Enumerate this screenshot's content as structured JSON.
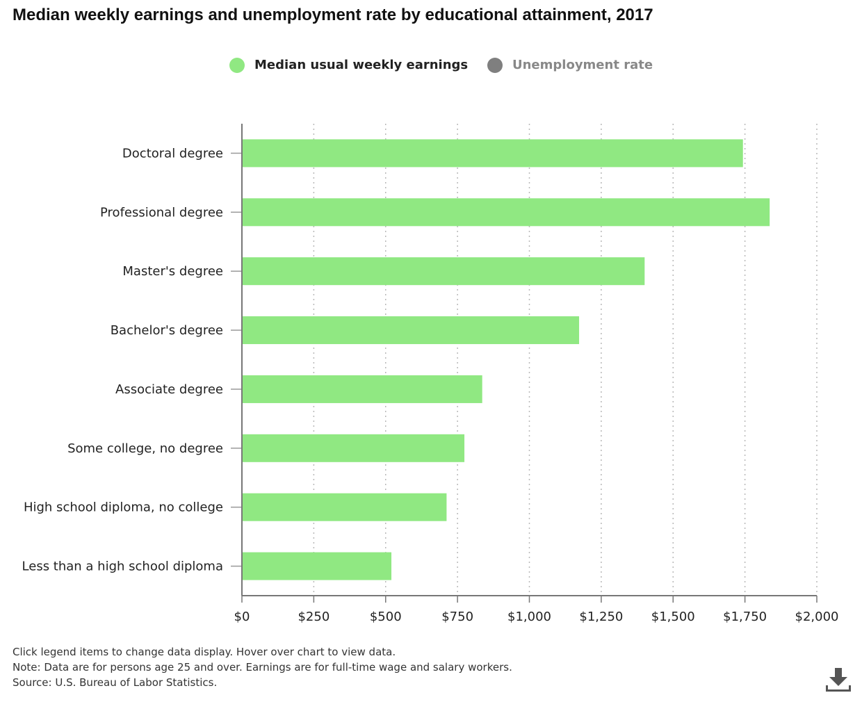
{
  "title": "Median weekly earnings and unemployment rate by educational attainment, 2017",
  "legend": [
    {
      "label": "Median usual weekly earnings",
      "color": "#90e882",
      "active": true
    },
    {
      "label": "Unemployment rate",
      "color": "#7f7f7f",
      "active": false
    }
  ],
  "notes": {
    "interaction": "Click legend items to change data display. Hover over chart to view data.",
    "note": "Note: Data are for persons age 25 and over. Earnings are for full-time wage and salary workers.",
    "source": "Source: U.S. Bureau of Labor Statistics."
  },
  "download_icon": "download-icon",
  "chart_data": {
    "type": "bar",
    "orientation": "horizontal",
    "categories": [
      "Doctoral degree",
      "Professional degree",
      "Master's degree",
      "Bachelor's degree",
      "Associate degree",
      "Some college, no degree",
      "High school diploma, no college",
      "Less than a high school diploma"
    ],
    "series": [
      {
        "name": "Median usual weekly earnings",
        "values": [
          1743,
          1836,
          1401,
          1173,
          836,
          774,
          712,
          520
        ],
        "color": "#90e882"
      }
    ],
    "xlim": [
      0,
      2000
    ],
    "x_ticks": [
      0,
      250,
      500,
      750,
      1000,
      1250,
      1500,
      1750,
      2000
    ],
    "x_tick_labels": [
      "$0",
      "$250",
      "$500",
      "$750",
      "$1,000",
      "$1,250",
      "$1,500",
      "$1,750",
      "$2,000"
    ],
    "grid": "vertical dotted",
    "legend_position": "top-center"
  }
}
